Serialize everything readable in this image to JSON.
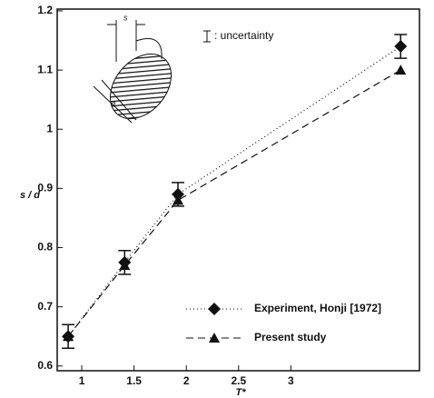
{
  "chart_data": {
    "type": "line",
    "x_label": "T*",
    "y_label": "s / d",
    "annotation": ": uncertainty",
    "xlim": [
      0.765,
      4.23
    ],
    "xticks": [
      1,
      1.5,
      2,
      2.5,
      3
    ],
    "ylim": [
      0.592,
      1.203
    ],
    "yticks": [
      0.6,
      0.7,
      0.8,
      0.9,
      1,
      1.1,
      1.2
    ],
    "legend": "lower right",
    "series": [
      {
        "name": "Experiment, Honji [1972]",
        "color": "#111111",
        "marker": "diamond",
        "dash": "dotted",
        "x": [
          0.87,
          1.41,
          1.92,
          4.05
        ],
        "values": [
          0.65,
          0.775,
          0.89,
          1.14
        ],
        "errors": [
          0.02,
          0.02,
          0.02,
          0.02
        ]
      },
      {
        "name": "Present study",
        "color": "#111111",
        "marker": "triangle",
        "dash": "dashed",
        "x": [
          0.87,
          1.41,
          1.92,
          4.05
        ],
        "values": [
          0.65,
          0.77,
          0.88,
          1.1
        ]
      }
    ]
  }
}
